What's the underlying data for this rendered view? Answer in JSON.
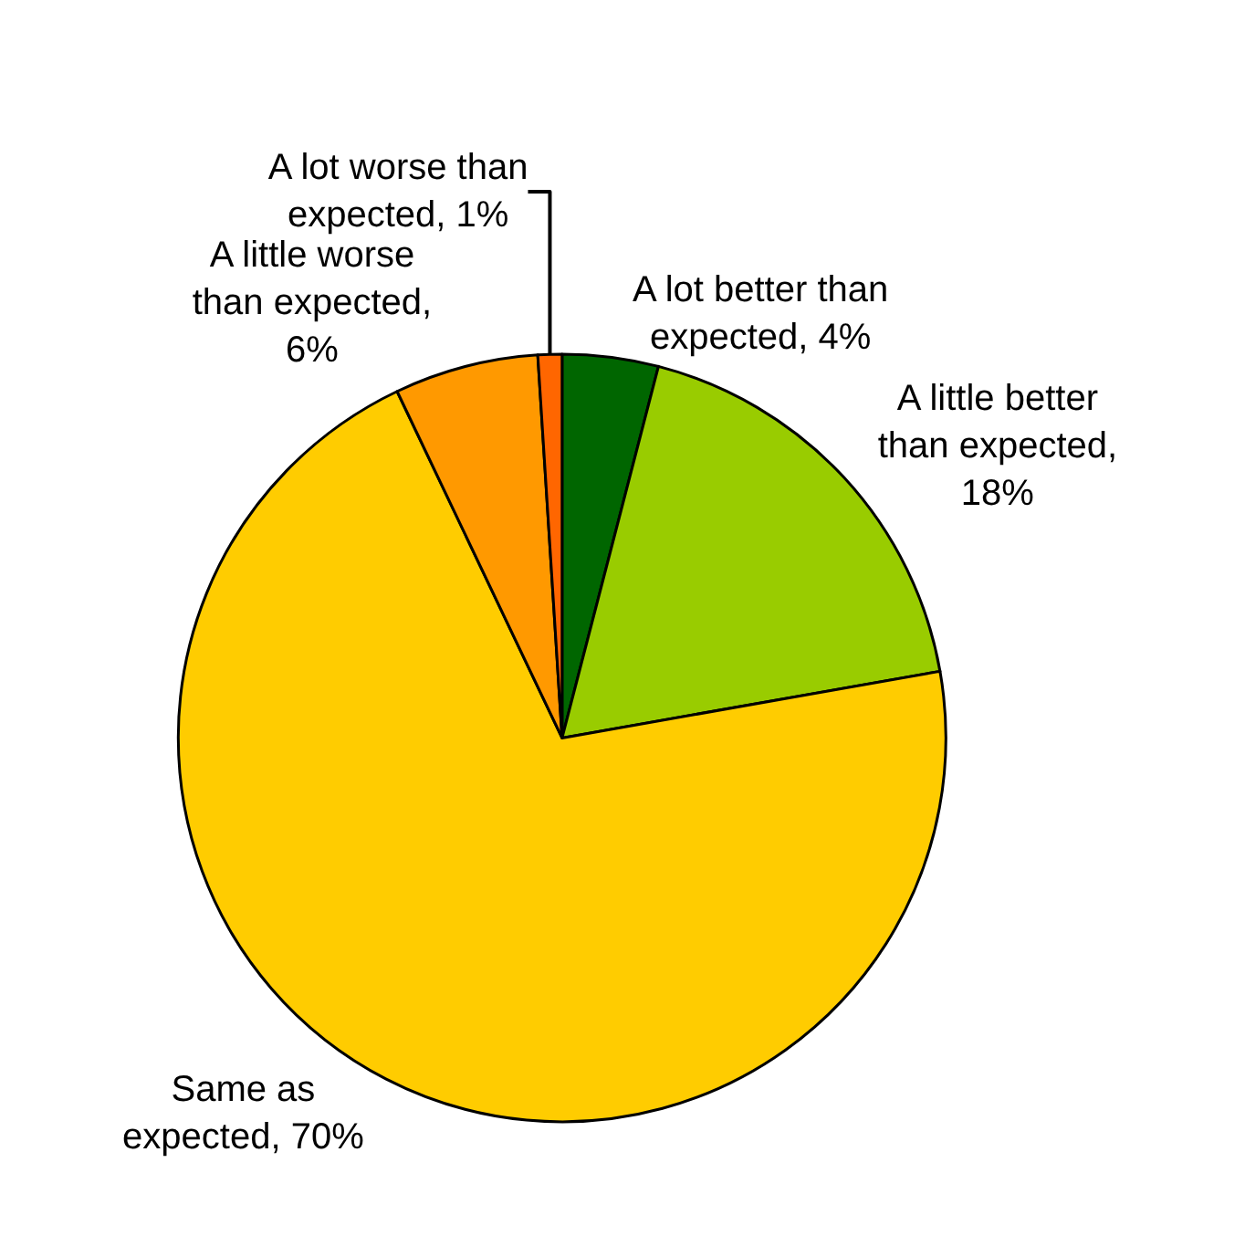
{
  "chart_data": {
    "type": "pie",
    "categories": [
      "A lot better than expected, 4%",
      "A little better than expected, 18%",
      "Same as expected, 70%",
      "A little worse than expected, 6%",
      "A lot worse than expected, 1%"
    ],
    "values": [
      4,
      18,
      70,
      6,
      1
    ],
    "colors": [
      "#006600",
      "#99cc00",
      "#ffcc00",
      "#ff9900",
      "#ff6600"
    ],
    "legend": false
  }
}
